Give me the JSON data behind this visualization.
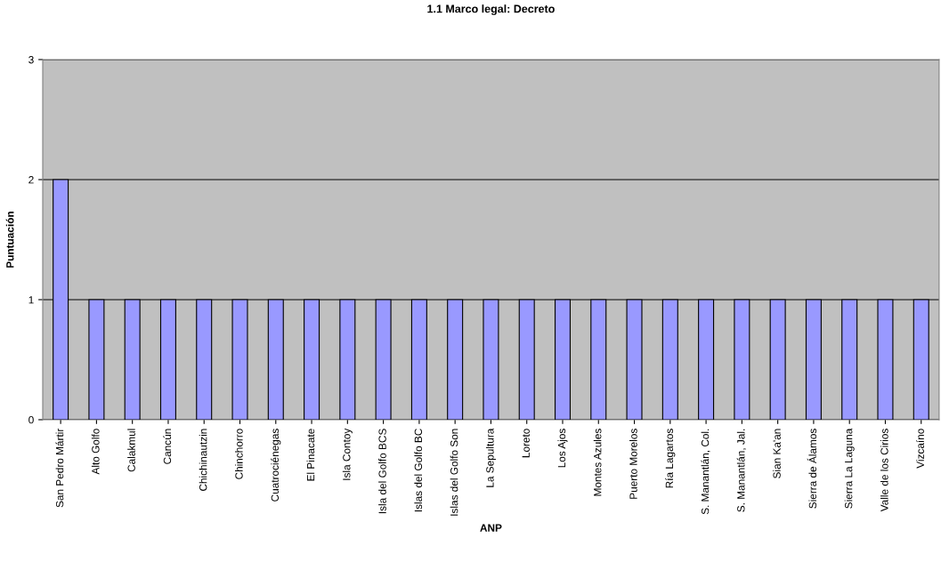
{
  "chart_data": {
    "type": "bar",
    "title": "1.1 Marco legal: Decreto",
    "xlabel": "ANP",
    "ylabel": "Puntuación",
    "categories": [
      "San Pedro Mártir",
      "Alto Golfo",
      "Calakmul",
      "Cancún",
      "Chichinautzin",
      "Chinchorro",
      "Cuatrociénegas",
      "El Pinacate",
      "Isla Contoy",
      "Isla del Golfo BCS",
      "Islas del Golfo BC",
      "Islas del Golfo Son",
      "La Sepultura",
      "Loreto",
      "Los Ajos",
      "Montes Azules",
      "Puerto Morelos",
      "Ría Lagartos",
      "S. Manantlán, Col.",
      "S. Manantlán, Jal.",
      "Sian Ka'an",
      "Sierra de Álamos",
      "Sierra La Laguna",
      "Valle de los Cirios",
      "Vizcaíno"
    ],
    "values": [
      2,
      1,
      1,
      1,
      1,
      1,
      1,
      1,
      1,
      1,
      1,
      1,
      1,
      1,
      1,
      1,
      1,
      1,
      1,
      1,
      1,
      1,
      1,
      1,
      1
    ],
    "color": "#9999ff",
    "ylim": [
      0,
      3
    ],
    "yticks": [
      0,
      1,
      2,
      3
    ],
    "grid": "y"
  }
}
